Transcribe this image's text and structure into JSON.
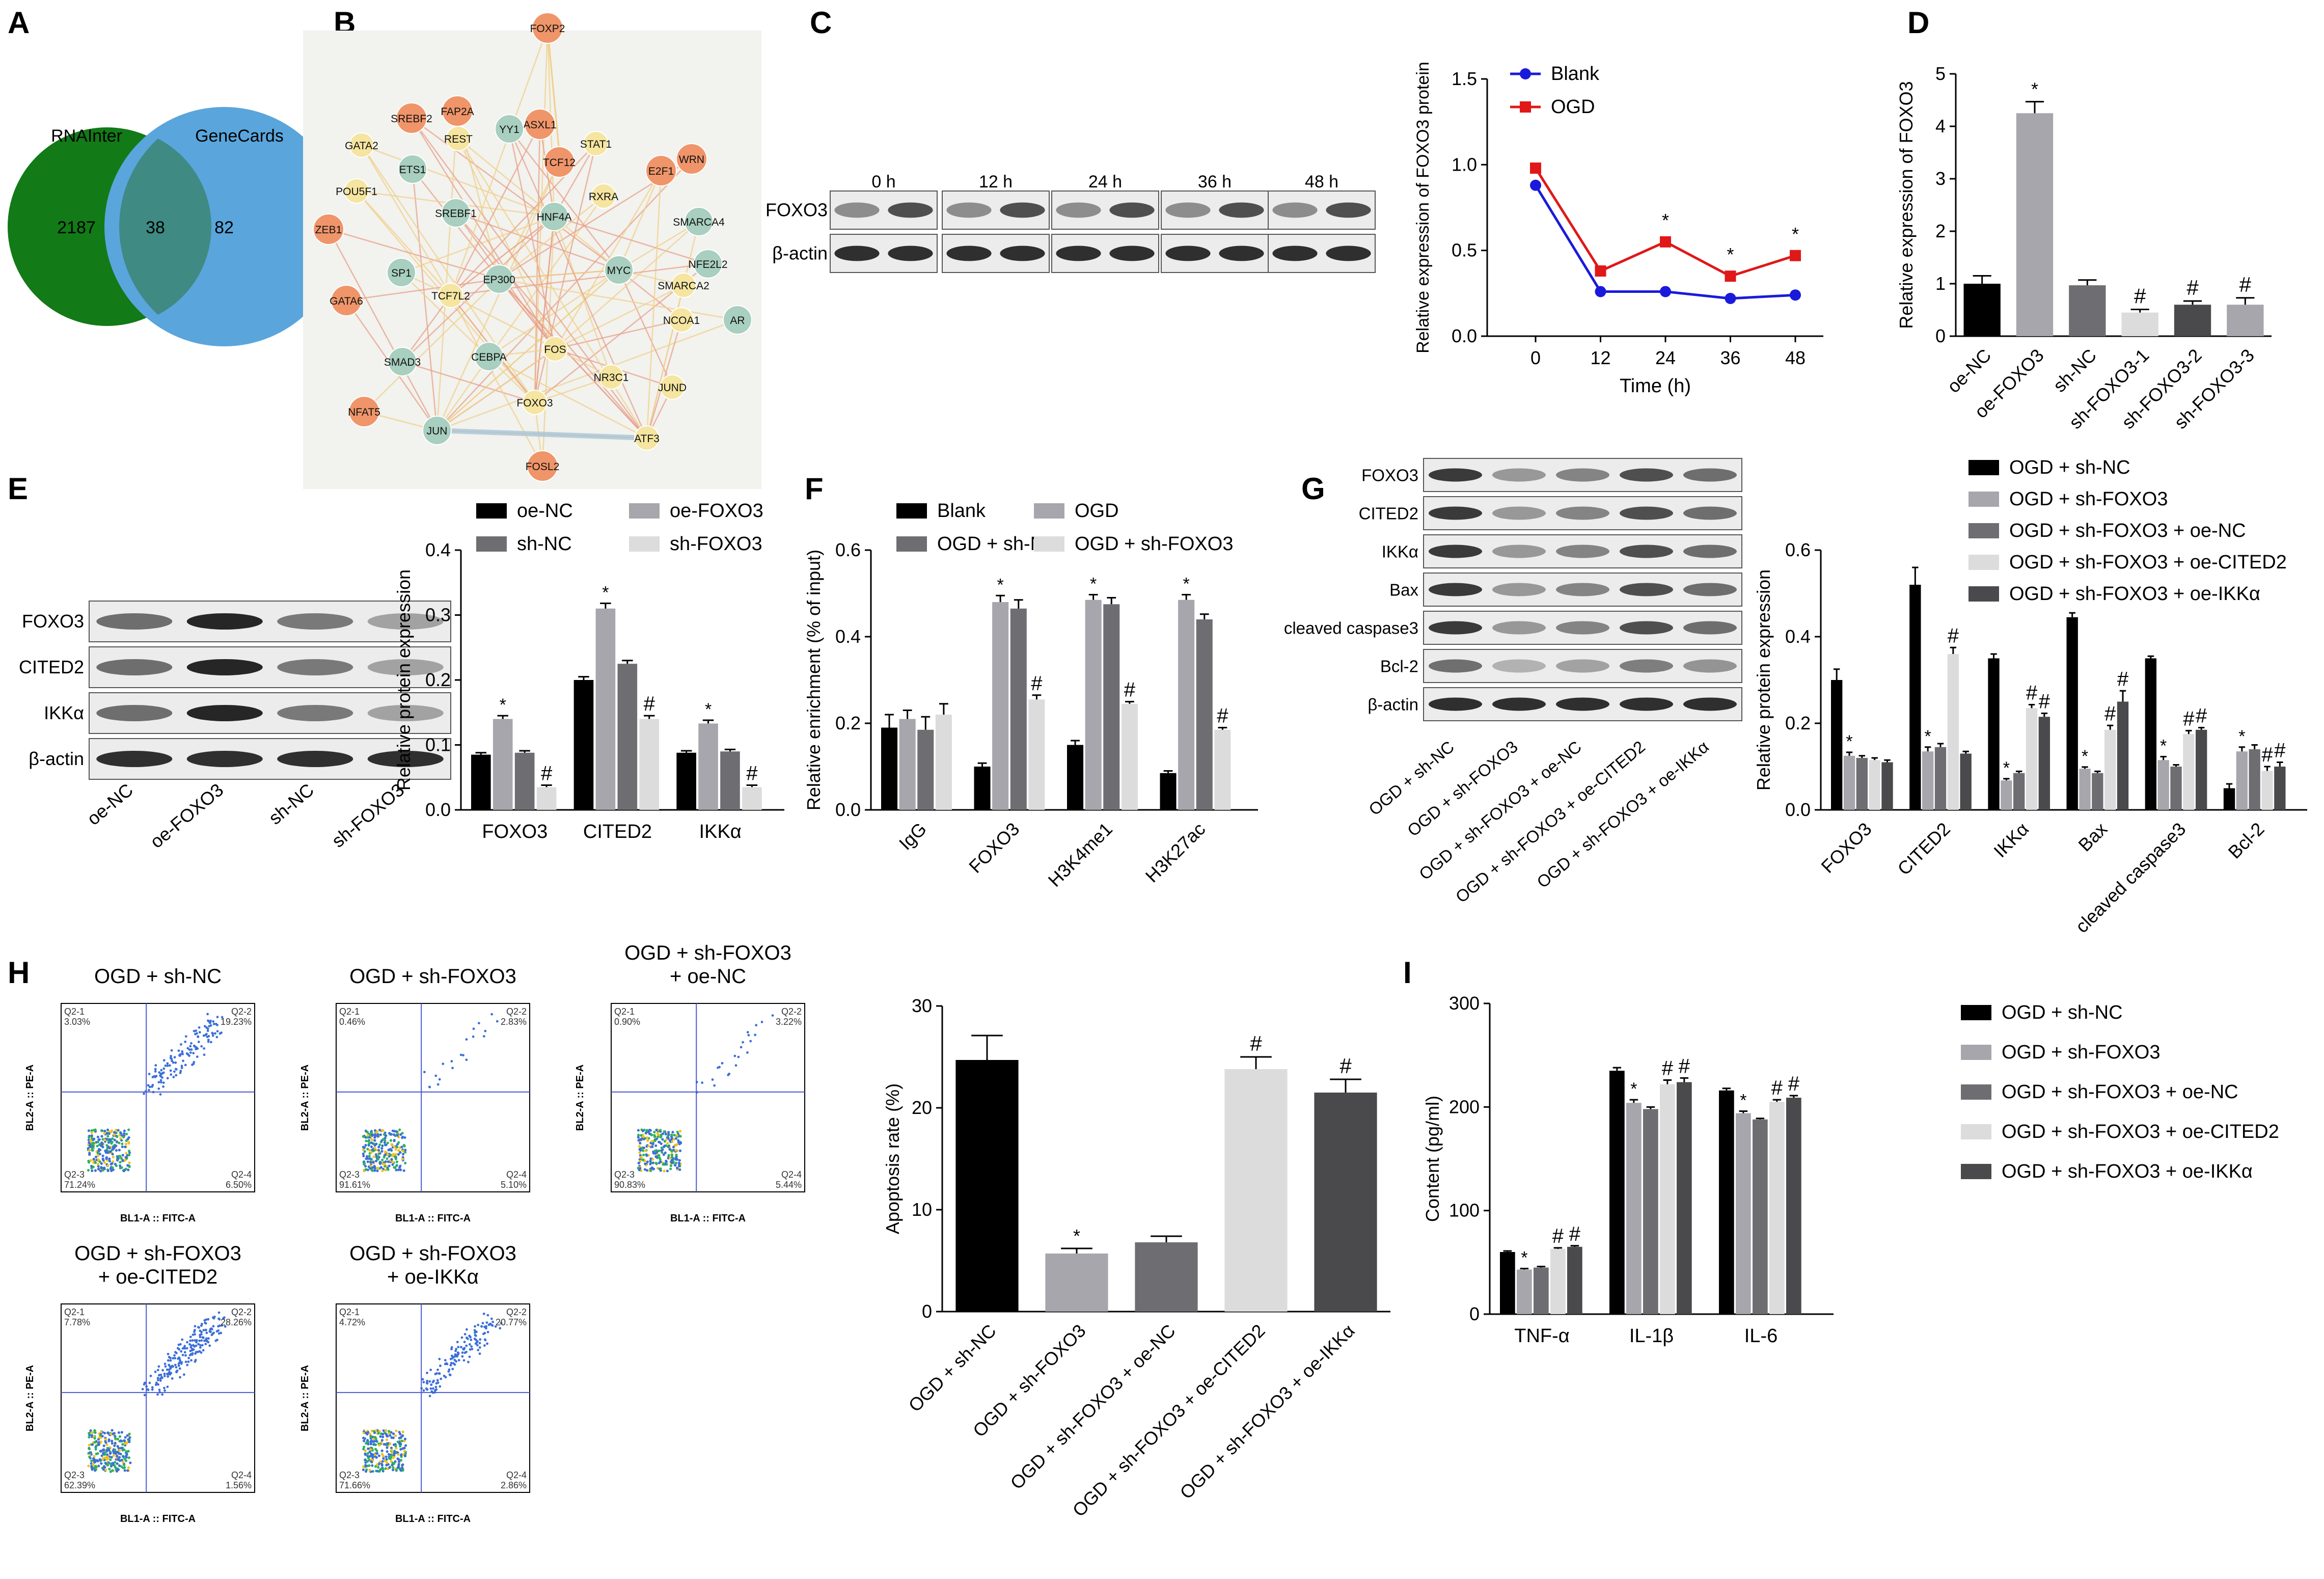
{
  "figure": {
    "panels": [
      "A",
      "B",
      "C",
      "D",
      "E",
      "F",
      "G",
      "H",
      "I"
    ]
  },
  "colors": {
    "black": "#000000",
    "lightgray": "#a6a6ac",
    "gray": "#6e6e72",
    "verylight": "#dcdcdc",
    "darkgray": "#4a4a4d",
    "blue": "#1a1adb",
    "red": "#e01818",
    "venn_green": "#127a17",
    "venn_blue": "#5aa5dc"
  },
  "venn": {
    "left_label": "RNAInter",
    "right_label": "GeneCards",
    "left_only": "2187",
    "overlap": "38",
    "right_only": "82"
  },
  "network": {
    "nodes": [
      "FOXP2",
      "SREBF2",
      "FAP2A",
      "ASXL1",
      "REST",
      "WRN",
      "GATA2",
      "YY1",
      "TCF12",
      "STAT1",
      "E2F1",
      "ETS1",
      "POU5F1",
      "SREBF1",
      "RXRA",
      "HNF4A",
      "SMARCA4",
      "ZEB1",
      "SP1",
      "EP300",
      "MYC",
      "NFE2L2",
      "SMARCA2",
      "GATA6",
      "TCF7L2",
      "NCOA1",
      "AR",
      "SMAD3",
      "CEBPA",
      "FOS",
      "NR3C1",
      "JUND",
      "NFAT5",
      "FOXO3",
      "JUN",
      "ATF3",
      "FOSL2"
    ]
  },
  "blots": {
    "C": {
      "rows": [
        "FOXO3",
        "β-actin"
      ],
      "columns": [
        "0 h",
        "12 h",
        "24 h",
        "36 h",
        "48 h"
      ]
    },
    "E": {
      "rows": [
        "FOXO3",
        "CITED2",
        "IKKα",
        "β-actin"
      ],
      "columns": [
        "oe-NC",
        "oe-FOXO3",
        "sh-NC",
        "sh-FOXO3"
      ]
    },
    "G": {
      "rows": [
        "FOXO3",
        "CITED2",
        "IKKα",
        "Bax",
        "cleaved caspase3",
        "Bcl-2",
        "β-actin"
      ],
      "columns": [
        "OGD + sh-NC",
        "OGD + sh-FOXO3",
        "OGD + sh-FOXO3 + oe-NC",
        "OGD + sh-FOXO3 + oe-CITED2",
        "OGD + sh-FOXO3 + oe-IKKα"
      ]
    }
  },
  "flow": {
    "xlabel": "BL1-A :: FITC-A",
    "ylabel": "BL2-A :: PE-A",
    "plots": [
      {
        "title": "OGD + sh-NC",
        "q1": "Q2-1",
        "q2": "Q2-2",
        "q3": "Q2-3",
        "q4": "Q2-4",
        "v1": "3.03%",
        "v2": "19.23%",
        "v3": "71.24%",
        "v4": "6.50%"
      },
      {
        "title": "OGD + sh-FOXO3",
        "q1": "Q2-1",
        "q2": "Q2-2",
        "q3": "Q2-3",
        "q4": "Q2-4",
        "v1": "0.46%",
        "v2": "2.83%",
        "v3": "91.61%",
        "v4": "5.10%"
      },
      {
        "title": "OGD + sh-FOXO3\n+ oe-NC",
        "q1": "Q2-1",
        "q2": "Q2-2",
        "q3": "Q2-3",
        "q4": "Q2-4",
        "v1": "0.90%",
        "v2": "3.22%",
        "v3": "90.83%",
        "v4": "5.44%"
      },
      {
        "title": "OGD + sh-FOXO3\n+ oe-CITED2",
        "q1": "Q2-1",
        "q2": "Q2-2",
        "q3": "Q2-3",
        "q4": "Q2-4",
        "v1": "7.78%",
        "v2": "28.26%",
        "v3": "62.39%",
        "v4": "1.56%"
      },
      {
        "title": "OGD + sh-FOXO3\n+ oe-IKKα",
        "q1": "Q2-1",
        "q2": "Q2-2",
        "q3": "Q2-3",
        "q4": "Q2-4",
        "v1": "4.72%",
        "v2": "20.77%",
        "v3": "71.66%",
        "v4": "2.86%"
      }
    ]
  },
  "chart_data": [
    {
      "id": "C",
      "type": "line",
      "x": [
        0,
        12,
        24,
        36,
        48
      ],
      "series": [
        {
          "name": "Blank",
          "values": [
            0.88,
            0.26,
            0.26,
            0.22,
            0.24
          ],
          "color": "#1a1adb"
        },
        {
          "name": "OGD",
          "values": [
            0.98,
            0.38,
            0.55,
            0.35,
            0.47
          ],
          "color": "#e01818"
        }
      ],
      "stars": [
        "",
        "",
        "*",
        "*",
        "*"
      ],
      "xlabel": "Time (h)",
      "ylabel": "Relative expression of FOXO3 protein",
      "ylim": [
        0,
        1.5
      ],
      "yticks": [
        "0.0",
        "0.5",
        "1.0",
        "1.5"
      ],
      "xticks": [
        "0",
        "12",
        "24",
        "36",
        "48"
      ]
    },
    {
      "id": "D",
      "type": "bar",
      "categories": [
        "oe-NC",
        "oe-FOXO3",
        "sh-NC",
        "sh-FOXO3-1",
        "sh-FOXO3-2",
        "sh-FOXO3-3"
      ],
      "values": [
        1.0,
        4.25,
        0.97,
        0.45,
        0.6,
        0.6
      ],
      "errors": [
        0.15,
        0.22,
        0.1,
        0.06,
        0.07,
        0.13
      ],
      "colors": [
        "#000000",
        "#a6a6ac",
        "#6e6e72",
        "#dcdcdc",
        "#4a4a4d",
        "#a6a6ac"
      ],
      "marks": [
        "",
        "*",
        "",
        "#",
        "#",
        "#"
      ],
      "ylabel": "Relative expression of FOXO3",
      "ylim": [
        0,
        5
      ],
      "yticks": [
        "0",
        "1",
        "2",
        "3",
        "4",
        "5"
      ]
    },
    {
      "id": "E",
      "type": "bar",
      "categories": [
        "FOXO3",
        "CITED2",
        "IKKα"
      ],
      "series": [
        {
          "name": "oe-NC",
          "values": [
            0.085,
            0.2,
            0.088
          ],
          "errors": [
            0.003,
            0.005,
            0.003
          ]
        },
        {
          "name": "oe-FOXO3",
          "values": [
            0.14,
            0.31,
            0.133
          ],
          "errors": [
            0.005,
            0.008,
            0.005
          ]
        },
        {
          "name": "sh-NC",
          "values": [
            0.088,
            0.225,
            0.09
          ],
          "errors": [
            0.003,
            0.005,
            0.003
          ]
        },
        {
          "name": "sh-FOXO3",
          "values": [
            0.035,
            0.14,
            0.035
          ],
          "errors": [
            0.003,
            0.005,
            0.003
          ]
        }
      ],
      "colors": [
        "#000000",
        "#a6a6ac",
        "#6e6e72",
        "#dcdcdc"
      ],
      "marks": [
        [
          "",
          "*",
          "",
          "#"
        ],
        [
          "",
          "*",
          "",
          "#"
        ],
        [
          "",
          "*",
          "",
          "#"
        ]
      ],
      "ylabel": "Relative protein expression",
      "ylim": [
        0,
        0.4
      ],
      "yticks": [
        "0.0",
        "0.1",
        "0.2",
        "0.3",
        "0.4"
      ]
    },
    {
      "id": "F",
      "type": "bar",
      "categories": [
        "IgG",
        "FOXO3",
        "H3K4me1",
        "H3K27ac"
      ],
      "series": [
        {
          "name": "Blank",
          "values": [
            0.19,
            0.1,
            0.15,
            0.085
          ],
          "errors": [
            0.03,
            0.008,
            0.01,
            0.005
          ]
        },
        {
          "name": "OGD",
          "values": [
            0.21,
            0.48,
            0.485,
            0.485
          ],
          "errors": [
            0.02,
            0.015,
            0.012,
            0.012
          ]
        },
        {
          "name": "OGD + sh-NC",
          "values": [
            0.185,
            0.465,
            0.475,
            0.44
          ],
          "errors": [
            0.03,
            0.02,
            0.015,
            0.012
          ]
        },
        {
          "name": "OGD + sh-FOXO3",
          "values": [
            0.22,
            0.255,
            0.245,
            0.185
          ],
          "errors": [
            0.025,
            0.01,
            0.005,
            0.005
          ]
        }
      ],
      "colors": [
        "#000000",
        "#a6a6ac",
        "#6e6e72",
        "#dcdcdc"
      ],
      "marks": [
        [
          "",
          "",
          "",
          ""
        ],
        [
          "",
          "*",
          "",
          "#"
        ],
        [
          "",
          "*",
          "",
          "#"
        ],
        [
          "",
          "*",
          "",
          "#"
        ]
      ],
      "ylabel": "Relative enrichment (% of input)",
      "ylim": [
        0,
        0.6
      ],
      "yticks": [
        "0.0",
        "0.2",
        "0.4",
        "0.6"
      ]
    },
    {
      "id": "G",
      "type": "bar",
      "categories": [
        "FOXO3",
        "CITED2",
        "IKKα",
        "Bax",
        "cleaved caspase3",
        "Bcl-2"
      ],
      "series": [
        {
          "name": "OGD + sh-NC",
          "values": [
            0.3,
            0.52,
            0.35,
            0.445,
            0.35,
            0.05
          ],
          "errors": [
            0.025,
            0.04,
            0.01,
            0.01,
            0.005,
            0.01
          ]
        },
        {
          "name": "OGD + sh-FOXO3",
          "values": [
            0.125,
            0.135,
            0.068,
            0.095,
            0.115,
            0.135
          ],
          "errors": [
            0.008,
            0.01,
            0.004,
            0.004,
            0.008,
            0.01
          ]
        },
        {
          "name": "OGD + sh-FOXO3 + oe-NC",
          "values": [
            0.12,
            0.145,
            0.085,
            0.085,
            0.1,
            0.14
          ],
          "errors": [
            0.005,
            0.008,
            0.004,
            0.004,
            0.004,
            0.01
          ]
        },
        {
          "name": "OGD + sh-FOXO3 + oe-CITED2",
          "values": [
            0.115,
            0.36,
            0.235,
            0.185,
            0.175,
            0.09
          ],
          "errors": [
            0.005,
            0.015,
            0.008,
            0.01,
            0.008,
            0.01
          ]
        },
        {
          "name": "OGD + sh-FOXO3 + oe-IKKα",
          "values": [
            0.11,
            0.13,
            0.215,
            0.25,
            0.185,
            0.1
          ],
          "errors": [
            0.005,
            0.005,
            0.008,
            0.025,
            0.005,
            0.01
          ]
        }
      ],
      "colors": [
        "#000000",
        "#a6a6ac",
        "#6e6e72",
        "#dcdcdc",
        "#4a4a4d"
      ],
      "marks": [
        [
          "",
          "*",
          "",
          "",
          ""
        ],
        [
          "",
          "*",
          "",
          "#",
          ""
        ],
        [
          "",
          "*",
          "",
          "#",
          "#"
        ],
        [
          "",
          "*",
          "",
          "#",
          "#"
        ],
        [
          "",
          "*",
          "",
          "#",
          "#"
        ],
        [
          "",
          "*",
          "",
          "#",
          "#"
        ]
      ],
      "ylabel": "Relative protein expression",
      "ylim": [
        0,
        0.6
      ],
      "yticks": [
        "0.0",
        "0.2",
        "0.4",
        "0.6"
      ]
    },
    {
      "id": "H",
      "type": "bar",
      "categories": [
        "OGD + sh-NC",
        "OGD + sh-FOXO3",
        "OGD + sh-FOXO3 + oe-NC",
        "OGD + sh-FOXO3 + oe-CITED2",
        "OGD + sh-FOXO3 + oe-IKKα"
      ],
      "values": [
        24.7,
        5.7,
        6.8,
        23.8,
        21.5
      ],
      "errors": [
        2.4,
        0.5,
        0.6,
        1.2,
        1.3
      ],
      "colors": [
        "#000000",
        "#a6a6ac",
        "#6e6e72",
        "#dcdcdc",
        "#4a4a4d"
      ],
      "marks": [
        "",
        "*",
        "",
        "#",
        "#"
      ],
      "ylabel": "Apoptosis rate (%)",
      "ylim": [
        0,
        30
      ],
      "yticks": [
        "0",
        "10",
        "20",
        "30"
      ]
    },
    {
      "id": "I",
      "type": "bar",
      "categories": [
        "TNF-α",
        "IL-1β",
        "IL-6"
      ],
      "series": [
        {
          "name": "OGD + sh-NC",
          "values": [
            60,
            235,
            216
          ],
          "errors": [
            1,
            3,
            2
          ]
        },
        {
          "name": "OGD + sh-FOXO3",
          "values": [
            43,
            204,
            194
          ],
          "errors": [
            1,
            3,
            2
          ]
        },
        {
          "name": "OGD + sh-FOXO3 + oe-NC",
          "values": [
            45,
            198,
            188
          ],
          "errors": [
            1,
            2,
            1
          ]
        },
        {
          "name": "OGD + sh-FOXO3 + oe-CITED2",
          "values": [
            63,
            222,
            205
          ],
          "errors": [
            1,
            4,
            2
          ]
        },
        {
          "name": "OGD + sh-FOXO3 + oe-IKKα",
          "values": [
            65,
            224,
            209
          ],
          "errors": [
            1,
            4,
            2
          ]
        }
      ],
      "colors": [
        "#000000",
        "#a6a6ac",
        "#6e6e72",
        "#dcdcdc",
        "#4a4a4d"
      ],
      "marks": [
        [
          "",
          "*",
          "",
          "#",
          "#"
        ],
        [
          "",
          "*",
          "",
          "#",
          "#"
        ],
        [
          "",
          "*",
          "",
          "#",
          "#"
        ]
      ],
      "ylabel": "Content (pg/ml)",
      "ylim": [
        0,
        300
      ],
      "yticks": [
        "0",
        "100",
        "200",
        "300"
      ]
    }
  ]
}
